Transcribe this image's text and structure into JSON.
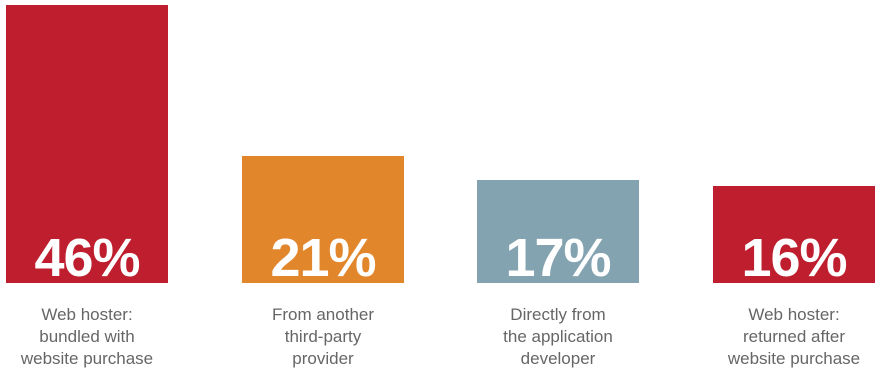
{
  "chart_data": {
    "type": "bar",
    "categories": [
      "Web hoster:\nbundled with\nwebsite purchase",
      "From another\nthird-party\nprovider",
      "Directly from\nthe application\ndeveloper",
      "Web hoster:\nreturned after\nwebsite purchase"
    ],
    "values": [
      46,
      21,
      17,
      16
    ],
    "value_labels": [
      "46%",
      "21%",
      "17%",
      "16%"
    ],
    "colors": [
      "#be1e2d",
      "#e2862b",
      "#84a3b0",
      "#be1e2d"
    ],
    "unit": "%",
    "ylim": [
      0,
      46
    ],
    "grid": false,
    "legend": "none"
  }
}
